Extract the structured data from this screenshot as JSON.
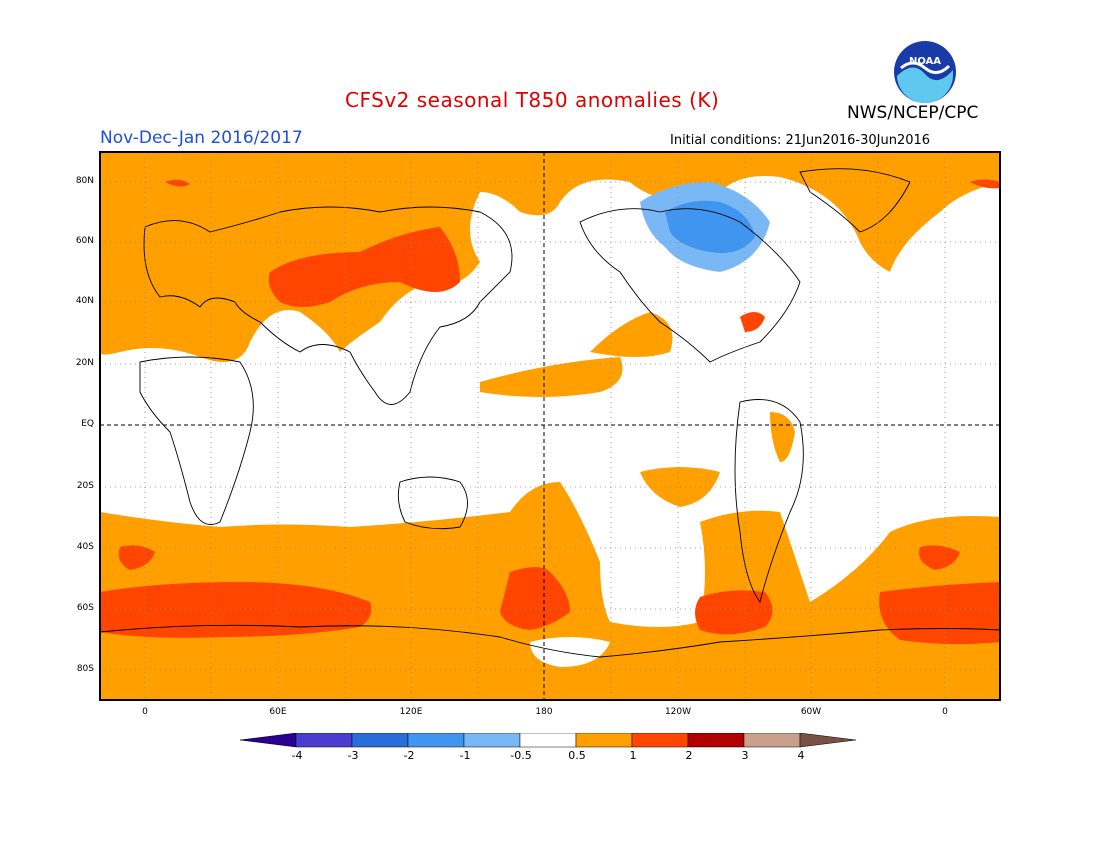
{
  "header": {
    "title": "CFSv2 seasonal T850 anomalies (K)",
    "subtitle": "Nov-Dec-Jan 2016/2017",
    "agency": "NWS/NCEP/CPC",
    "initial_conditions": "Initial conditions: 21Jun2016-30Jun2016",
    "logo_text": "NOAA"
  },
  "colors": {
    "title": "#e00000",
    "subtitle": "#1f4fd8",
    "land_outline": "#000000",
    "levels": [
      "#2a0090",
      "#4a3ed0",
      "#2a6cd8",
      "#3f95f0",
      "#7ab8f5",
      "#ffffff",
      "#ffa000",
      "#ff4500",
      "#b00000",
      "#c8a08c",
      "#7a5040"
    ]
  },
  "map": {
    "lat_labels": [
      "80N",
      "60N",
      "40N",
      "20N",
      "EQ",
      "20S",
      "40S",
      "60S",
      "80S"
    ],
    "lon_labels": [
      "0",
      "60E",
      "120E",
      "180",
      "120W",
      "60W",
      "0"
    ]
  },
  "colorbar": {
    "labels": [
      "-4",
      "-3",
      "-2",
      "-1",
      "-0.5",
      "0.5",
      "1",
      "2",
      "3",
      "4"
    ]
  }
}
